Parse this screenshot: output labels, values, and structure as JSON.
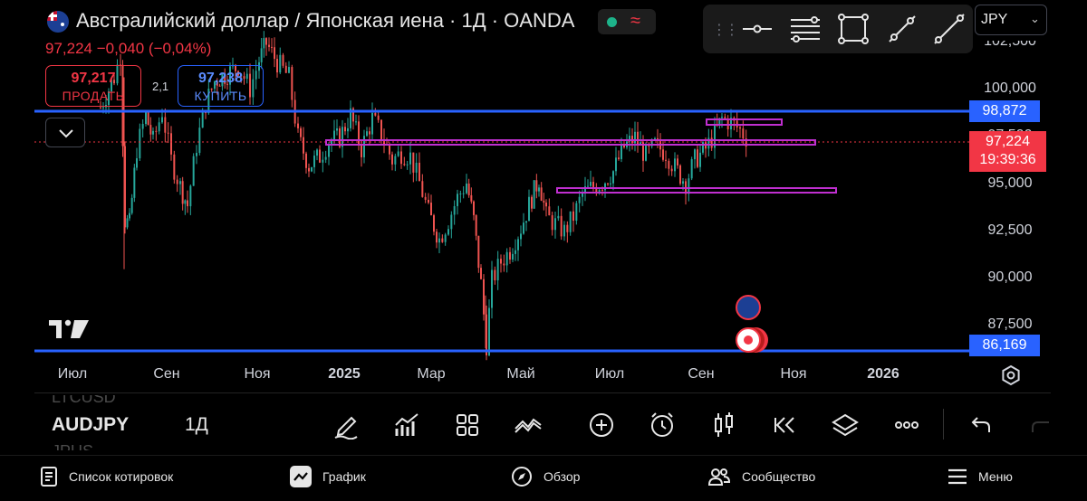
{
  "header": {
    "title": "Австралийский доллар / Японская иена · 1Д · OANDA",
    "price_line": "97,224  −0,040 (−0,04%)"
  },
  "trade": {
    "sell_price": "97,217",
    "sell_label": "ПРОДАТЬ",
    "spread": "2,1",
    "buy_price": "97,238",
    "buy_label": "КУПИТЬ"
  },
  "toolbar": {
    "icons": [
      "horizontal-line-icon",
      "parallel-channel-icon",
      "rectangle-icon",
      "trend-line-icon",
      "ray-icon"
    ]
  },
  "symbol_select": {
    "value": "JPY"
  },
  "price_axis": {
    "ticks": [
      "102,500",
      "100,000",
      "97,500",
      "95,000",
      "92,500",
      "90,000",
      "87,500"
    ],
    "upper_level": "98,872",
    "lower_level": "86,169",
    "current_price": "97,224",
    "countdown": "19:39:36"
  },
  "time_axis": {
    "ticks": [
      "Июл",
      "Сен",
      "Ноя",
      "2025",
      "Мар",
      "Май",
      "Июл",
      "Сен",
      "Ноя",
      "2026"
    ]
  },
  "watermark": "TV",
  "bottom_bar": {
    "ghost_top": "LTCUSD",
    "ticker": "AUDJPY",
    "ghost_bottom": "JPUS",
    "interval": "1Д"
  },
  "nav": {
    "quotes": "Список котировок",
    "chart": "График",
    "overview": "Обзор",
    "community": "Сообщество",
    "menu": "Меню"
  },
  "colors": {
    "up": "#26a69a",
    "down": "#ef5350",
    "level_line": "#2962ff",
    "zone": "#c02fd0",
    "sell": "#f23645",
    "buy": "#2962ff"
  }
}
